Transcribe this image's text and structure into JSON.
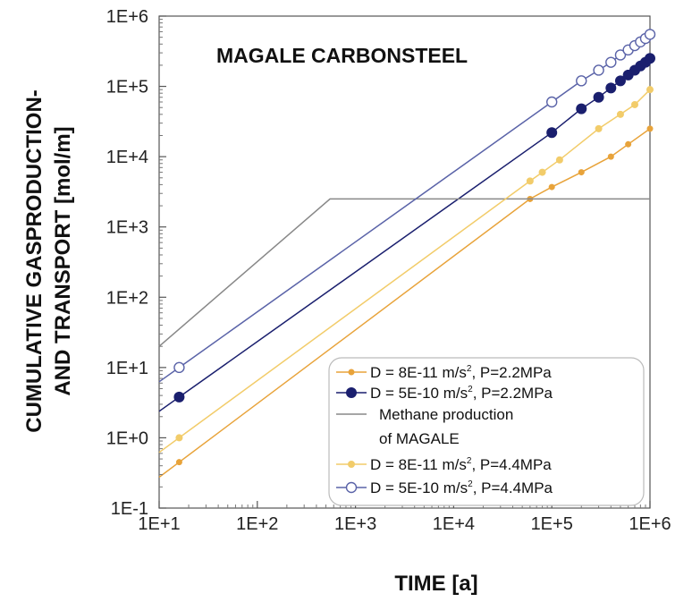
{
  "chart_data": {
    "type": "line",
    "title": "MAGALE CARBONSTEEL",
    "xlabel": "TIME [a]",
    "ylabel_line1": "CUMULATIVE GASPRODUCTION-",
    "ylabel_line2": "AND TRANSPORT [mol/m]",
    "xscale": "log",
    "yscale": "log",
    "xlim": [
      10,
      1000000
    ],
    "ylim": [
      0.1,
      1000000
    ],
    "xticks": [
      "1E+1",
      "1E+2",
      "1E+3",
      "1E+4",
      "1E+5",
      "1E+6"
    ],
    "yticks": [
      "1E-1",
      "1E+0",
      "1E+1",
      "1E+2",
      "1E+3",
      "1E+4",
      "1E+5",
      "1E+6"
    ],
    "grid": false,
    "legend_position": "bottom-right",
    "series": [
      {
        "name": "D = 8E-11 m/s², P=2.2MPa",
        "legend_main": "D = 8E-11 m/s",
        "legend_sup": "2",
        "legend_tail": ", P=2.2MPa",
        "color": "#e8a33a",
        "marker": "filled-small",
        "x": [
          16,
          60000,
          100000,
          200000,
          400000,
          600000,
          1000000
        ],
        "y": [
          0.45,
          2500,
          3700,
          6000,
          10000,
          15000,
          25000
        ]
      },
      {
        "name": "D = 5E-10 m/s², P=2.2MPa",
        "legend_main": "D = 5E-10 m/s",
        "legend_sup": "2",
        "legend_tail": ", P=2.2MPa",
        "color": "#1a1f6e",
        "marker": "filled",
        "x": [
          16,
          100000,
          200000,
          300000,
          400000,
          500000,
          600000,
          700000,
          800000,
          900000,
          1000000
        ],
        "y": [
          3.8,
          22000,
          48000,
          70000,
          95000,
          120000,
          145000,
          170000,
          195000,
          220000,
          250000
        ]
      },
      {
        "name": "Methane production of MAGALE",
        "legend_line1": "Methane production",
        "legend_line2": "of MAGALE",
        "color": "#888888",
        "marker": "none",
        "x": [
          10,
          550,
          1000000
        ],
        "y": [
          20,
          2500,
          2500
        ]
      },
      {
        "name": "D = 8E-11 m/s², P=4.4MPa",
        "legend_main": "D = 8E-11 m/s",
        "legend_sup": "2",
        "legend_tail": ", P=4.4MPa",
        "color": "#f2cc6a",
        "marker": "filled-light",
        "x": [
          16,
          60000,
          80000,
          120000,
          300000,
          500000,
          700000,
          1000000
        ],
        "y": [
          1.0,
          4500,
          6000,
          9000,
          25000,
          40000,
          55000,
          90000
        ]
      },
      {
        "name": "D = 5E-10 m/s², P=4.4MPa",
        "legend_main": "D = 5E-10 m/s",
        "legend_sup": "2",
        "legend_tail": ", P=4.4MPa",
        "color": "#5a63a8",
        "marker": "open",
        "x": [
          16,
          100000,
          200000,
          300000,
          400000,
          500000,
          600000,
          700000,
          800000,
          900000,
          1000000
        ],
        "y": [
          10,
          60000,
          120000,
          170000,
          220000,
          280000,
          330000,
          380000,
          430000,
          480000,
          550000
        ]
      }
    ]
  }
}
